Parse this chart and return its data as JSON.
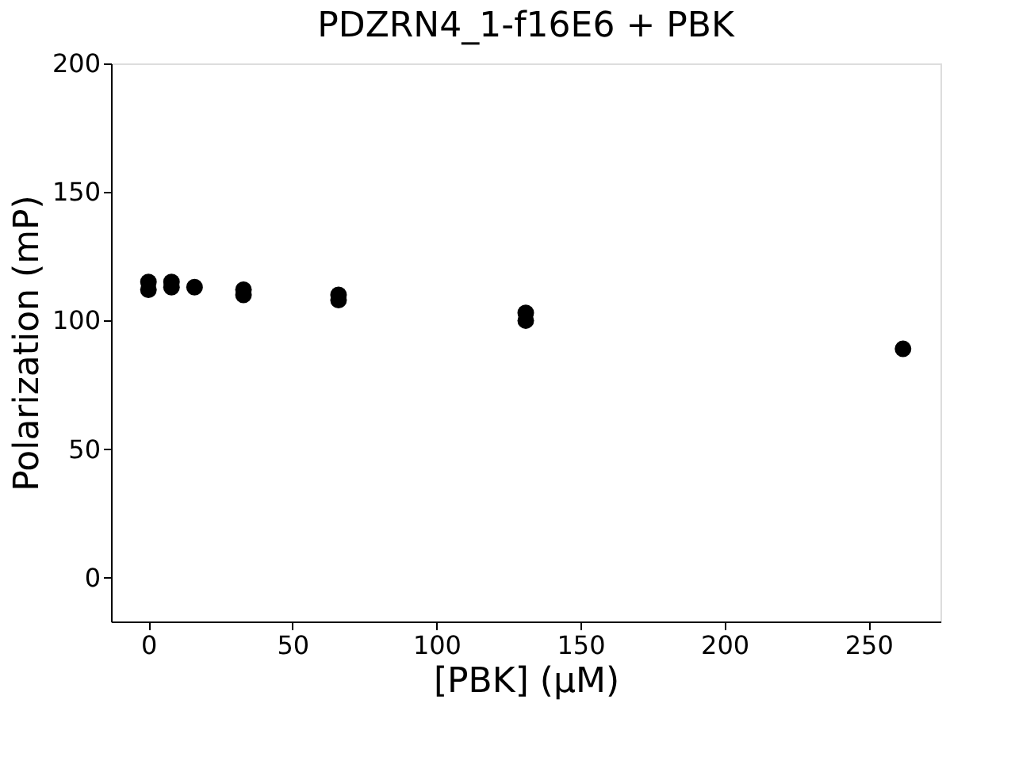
{
  "chart_data": {
    "type": "scatter",
    "title": "PDZRN4_1-f16E6 + PBK",
    "xlabel": "[PBK] (μM)",
    "ylabel": "Polarization (mP)",
    "x": [
      0,
      0,
      8,
      8,
      16,
      33,
      33,
      66,
      66,
      131,
      131,
      262
    ],
    "series": [
      {
        "color": "#000000",
        "values": [
          115,
          112,
          115,
          113,
          113,
          112,
          110,
          110,
          108,
          103,
          100,
          89
        ]
      }
    ],
    "xlim": [
      -13,
      275
    ],
    "ylim": [
      -17,
      200
    ],
    "xticks": [
      0,
      50,
      100,
      150,
      200,
      250
    ],
    "yticks": [
      0,
      50,
      100,
      150,
      200
    ],
    "grid": false,
    "legend": false,
    "marker": "circle"
  }
}
